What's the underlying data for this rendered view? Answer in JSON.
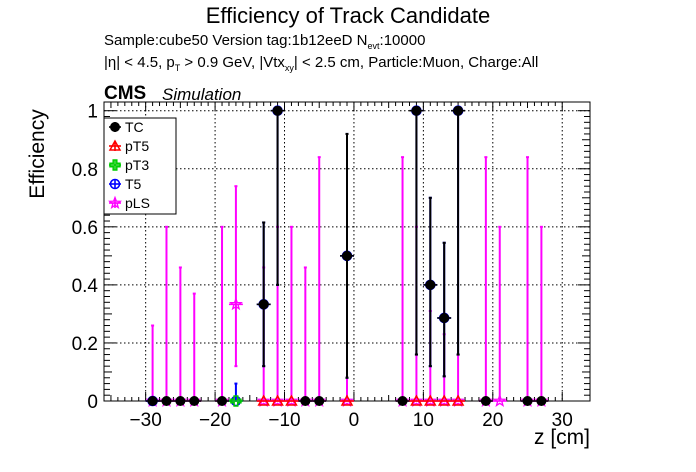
{
  "chart_data": {
    "type": "scatter",
    "title": "Efficiency of Track Candidate",
    "subtitle_lines": [
      "Sample:cube50   Version tag:1b12eeD  N_evt:10000",
      "|η| < 4.5, p_T > 0.9 GeV, |Vtx_xy| < 2.5 cm, Particle:Muon, Charge:All"
    ],
    "subtitle": {
      "sample": "Sample:cube50   Version tag:1b12eeD  N",
      "nevt_sub": "evt",
      "nevt_val": ":10000",
      "cuts_a": "|η| < 4.5, p",
      "cuts_sub1": "T",
      "cuts_b": " > 0.9 GeV, |Vtx",
      "cuts_sub2": "xy",
      "cuts_c": "| < 2.5 cm, Particle:Muon, Charge:All"
    },
    "cms_label": "CMS",
    "simulation_label": "Simulation",
    "xlabel": "z [cm]",
    "ylabel": "Efficiency",
    "xlim": [
      -36,
      34
    ],
    "ylim": [
      0,
      1.03
    ],
    "xticks": [
      -30,
      -20,
      -10,
      0,
      10,
      20,
      30
    ],
    "xtick_labels": [
      "−30",
      "−20",
      "−10",
      "0",
      "10",
      "20",
      "30"
    ],
    "yticks": [
      0,
      0.2,
      0.4,
      0.6,
      0.8,
      1
    ],
    "ytick_labels": [
      "0",
      "0.2",
      "0.4",
      "0.6",
      "0.8",
      "1"
    ],
    "grid": true,
    "legend_position": "top-left",
    "series": [
      {
        "name": "TC",
        "color": "#000000",
        "marker": "filled-circle",
        "points": [
          {
            "x": -29,
            "y": 0,
            "lo": 0,
            "hi": 0
          },
          {
            "x": -27,
            "y": 0,
            "lo": 0,
            "hi": 0
          },
          {
            "x": -25,
            "y": 0,
            "lo": 0,
            "hi": 0
          },
          {
            "x": -23,
            "y": 0,
            "lo": 0,
            "hi": 0
          },
          {
            "x": -19,
            "y": 0,
            "lo": 0,
            "hi": 0
          },
          {
            "x": -13,
            "y": 0.333,
            "lo": 0.12,
            "hi": 0.615
          },
          {
            "x": -11,
            "y": 1.0,
            "lo": 0.4,
            "hi": 1.0
          },
          {
            "x": -7,
            "y": 0,
            "lo": 0,
            "hi": 0
          },
          {
            "x": -5,
            "y": 0,
            "lo": 0,
            "hi": 0
          },
          {
            "x": -1,
            "y": 0.5,
            "lo": 0.08,
            "hi": 0.92
          },
          {
            "x": 7,
            "y": 0,
            "lo": 0,
            "hi": 0
          },
          {
            "x": 9,
            "y": 1.0,
            "lo": 0.16,
            "hi": 1.0
          },
          {
            "x": 11,
            "y": 0.4,
            "lo": 0.12,
            "hi": 0.7
          },
          {
            "x": 13,
            "y": 0.286,
            "lo": 0.085,
            "hi": 0.545
          },
          {
            "x": 15,
            "y": 1.0,
            "lo": 0.16,
            "hi": 1.0
          },
          {
            "x": 19,
            "y": 0,
            "lo": 0,
            "hi": 0
          },
          {
            "x": 25,
            "y": 0,
            "lo": 0,
            "hi": 0
          },
          {
            "x": 27,
            "y": 0,
            "lo": 0,
            "hi": 0
          }
        ]
      },
      {
        "name": "pT5",
        "color": "#ff0000",
        "marker": "open-triangle",
        "points": [
          {
            "x": -13,
            "y": 0
          },
          {
            "x": -11,
            "y": 0
          },
          {
            "x": -9,
            "y": 0
          },
          {
            "x": -1,
            "y": 0
          },
          {
            "x": 9,
            "y": 0
          },
          {
            "x": 11,
            "y": 0
          },
          {
            "x": 13,
            "y": 0
          },
          {
            "x": 15,
            "y": 0
          }
        ]
      },
      {
        "name": "pT3",
        "color": "#00cc00",
        "marker": "open-cross",
        "points": [
          {
            "x": -17,
            "y": 0
          }
        ]
      },
      {
        "name": "T5",
        "color": "#0000ff",
        "marker": "open-circle",
        "points": [
          {
            "x": -29,
            "y": 0,
            "lo": 0,
            "hi": 0
          },
          {
            "x": -17,
            "y": 0,
            "lo": 0,
            "hi": 0.06
          },
          {
            "x": -13,
            "y": 0.333,
            "lo": 0.12,
            "hi": 0.615
          },
          {
            "x": -11,
            "y": 1.0,
            "lo": 0.4,
            "hi": 1.0
          },
          {
            "x": -1,
            "y": 0.5,
            "lo": 0.08,
            "hi": 0.92
          },
          {
            "x": 9,
            "y": 1.0,
            "lo": 0.16,
            "hi": 1.0
          },
          {
            "x": 11,
            "y": 0.4,
            "lo": 0.12,
            "hi": 0.7
          },
          {
            "x": 13,
            "y": 0.286,
            "lo": 0.085,
            "hi": 0.545
          },
          {
            "x": 15,
            "y": 1.0,
            "lo": 0.16,
            "hi": 1.0
          }
        ]
      },
      {
        "name": "pLS",
        "color": "#ff00ff",
        "marker": "open-star",
        "points": [
          {
            "x": -29,
            "y": 0,
            "lo": 0,
            "hi": 0.26
          },
          {
            "x": -27,
            "y": 0,
            "lo": 0,
            "hi": 0.6
          },
          {
            "x": -25,
            "y": 0,
            "lo": 0,
            "hi": 0.46
          },
          {
            "x": -23,
            "y": 0,
            "lo": 0,
            "hi": 0.37
          },
          {
            "x": -19,
            "y": 0,
            "lo": 0,
            "hi": 0.6
          },
          {
            "x": -17,
            "y": 0.333,
            "lo": 0.12,
            "hi": 0.74
          },
          {
            "x": -13,
            "y": 0,
            "lo": 0,
            "hi": 0.46
          },
          {
            "x": -11,
            "y": 0,
            "lo": 0,
            "hi": 0.6
          },
          {
            "x": -9,
            "y": 0,
            "lo": 0,
            "hi": 0.6
          },
          {
            "x": -7,
            "y": 0,
            "lo": 0,
            "hi": 0.46
          },
          {
            "x": -5,
            "y": 0,
            "lo": 0,
            "hi": 0.84
          },
          {
            "x": -1,
            "y": 0,
            "lo": 0,
            "hi": 0.08
          },
          {
            "x": 7,
            "y": 0,
            "lo": 0,
            "hi": 0.84
          },
          {
            "x": 9,
            "y": 0,
            "lo": 0,
            "hi": 0.6
          },
          {
            "x": 11,
            "y": 0,
            "lo": 0,
            "hi": 0.31
          },
          {
            "x": 13,
            "y": 0,
            "lo": 0,
            "hi": 0.23
          },
          {
            "x": 15,
            "y": 0,
            "lo": 0,
            "hi": 0.16
          },
          {
            "x": 19,
            "y": 0,
            "lo": 0,
            "hi": 0.84
          },
          {
            "x": 21,
            "y": 0,
            "lo": 0,
            "hi": 0.6
          },
          {
            "x": 25,
            "y": 0,
            "lo": 0,
            "hi": 0.84
          },
          {
            "x": 27,
            "y": 0,
            "lo": 0,
            "hi": 0.6
          }
        ]
      }
    ]
  }
}
